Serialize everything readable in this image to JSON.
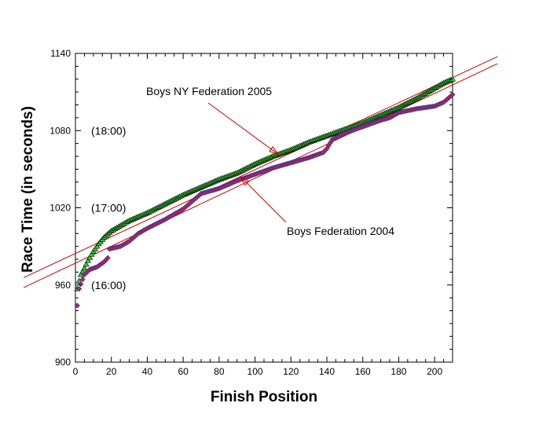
{
  "chart_data": {
    "type": "scatter",
    "title": "",
    "xlabel": "Finish Position",
    "ylabel": "Race Time (in seconds)",
    "xlim": [
      0,
      210
    ],
    "ylim": [
      900,
      1140
    ],
    "x_ticks": [
      0,
      20,
      40,
      60,
      80,
      100,
      120,
      140,
      160,
      180,
      200
    ],
    "y_ticks": [
      900,
      960,
      1020,
      1080,
      1140
    ],
    "grid": false,
    "series": [
      {
        "name": "Boys NY Federation 2005",
        "marker": "triangle",
        "fill_color": "#33cc33",
        "edge_color": "#000000",
        "points": [
          [
            1,
            957
          ],
          [
            2,
            963
          ],
          [
            3,
            968
          ],
          [
            5,
            973
          ],
          [
            7,
            979
          ],
          [
            10,
            986
          ],
          [
            13,
            992
          ],
          [
            16,
            997
          ],
          [
            20,
            1002
          ],
          [
            25,
            1006
          ],
          [
            30,
            1010
          ],
          [
            40,
            1016
          ],
          [
            50,
            1023
          ],
          [
            60,
            1030
          ],
          [
            70,
            1036
          ],
          [
            80,
            1042
          ],
          [
            90,
            1047
          ],
          [
            100,
            1054
          ],
          [
            110,
            1060
          ],
          [
            120,
            1065
          ],
          [
            130,
            1071
          ],
          [
            140,
            1076
          ],
          [
            150,
            1081
          ],
          [
            160,
            1086
          ],
          [
            170,
            1092
          ],
          [
            180,
            1098
          ],
          [
            190,
            1105
          ],
          [
            200,
            1113
          ],
          [
            205,
            1117
          ],
          [
            210,
            1120
          ]
        ]
      },
      {
        "name": "Boys Federation 2004",
        "marker": "diamond",
        "fill_color": "#cc2244",
        "edge_color": "#333399",
        "points": [
          [
            1,
            944
          ],
          [
            2,
            957
          ],
          [
            5,
            968
          ],
          [
            8,
            972
          ],
          [
            12,
            974
          ],
          [
            16,
            978
          ],
          [
            18,
            981
          ],
          [
            19,
            988
          ],
          [
            25,
            990
          ],
          [
            30,
            994
          ],
          [
            35,
            1000
          ],
          [
            40,
            1004
          ],
          [
            50,
            1011
          ],
          [
            60,
            1019
          ],
          [
            65,
            1025
          ],
          [
            70,
            1031
          ],
          [
            80,
            1035
          ],
          [
            90,
            1041
          ],
          [
            100,
            1046
          ],
          [
            110,
            1051
          ],
          [
            120,
            1055
          ],
          [
            130,
            1059
          ],
          [
            138,
            1063
          ],
          [
            140,
            1066
          ],
          [
            143,
            1073
          ],
          [
            150,
            1078
          ],
          [
            160,
            1083
          ],
          [
            170,
            1088
          ],
          [
            175,
            1090
          ],
          [
            180,
            1094
          ],
          [
            190,
            1097
          ],
          [
            200,
            1099
          ],
          [
            205,
            1102
          ],
          [
            210,
            1108
          ]
        ]
      }
    ],
    "fit_lines": [
      {
        "x": [
          0,
          235
        ],
        "y": [
          984.5,
          1137.5
        ]
      },
      {
        "x": [
          0,
          235
        ],
        "y": [
          977,
          1132
        ]
      }
    ],
    "annotations": [
      {
        "text": "Boys NY Federation 2005",
        "points_to": "Boys NY Federation 2005"
      },
      {
        "text": "Boys Federation 2004",
        "points_to": "Boys Federation 2004"
      }
    ],
    "y_time_labels": [
      {
        "value": 1080,
        "text": "(18:00)"
      },
      {
        "value": 1020,
        "text": "(17:00)"
      },
      {
        "value": 960,
        "text": "(16:00)"
      }
    ]
  }
}
